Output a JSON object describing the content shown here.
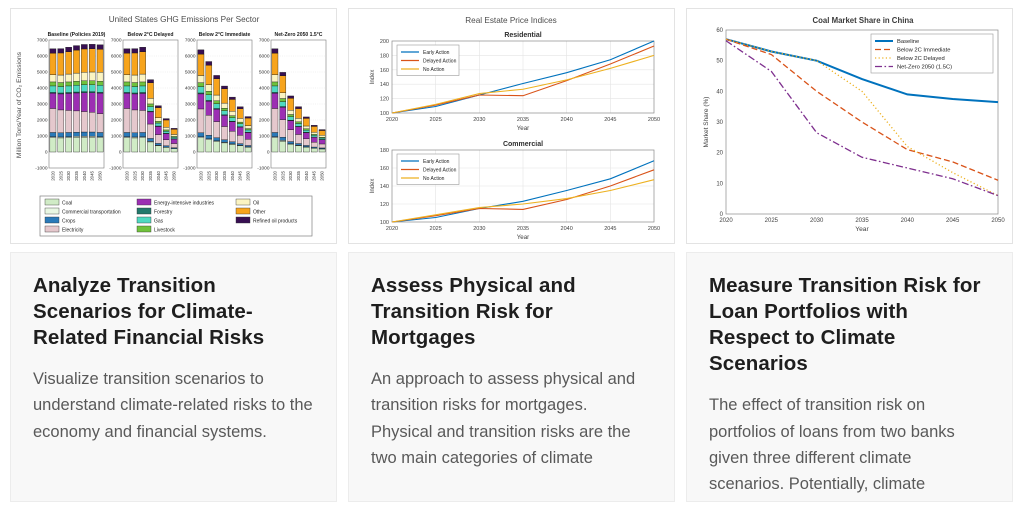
{
  "cards": [
    {
      "title": "Analyze Transition Scenarios for Climate-Related Financial Risks",
      "description": "Visualize transition scenarios to understand climate-related risks to the economy and financial systems."
    },
    {
      "title": "Assess Physical and Transition Risk for Mortgages",
      "description": "An approach to assess physical and transition risks for mortgages. Physical and transition risks are the two main categories of climate"
    },
    {
      "title": "Measure Transition Risk for Loan Portfolios with Respect to Climate Scenarios",
      "description": "The effect of transition risk on portfolios of loans from two banks given three different climate scenarios. Potentially, climate"
    }
  ],
  "chart_data": [
    {
      "type": "bar",
      "stacked": true,
      "title": "United States GHG Emissions Per Sector",
      "ylabel": "Million Tons/Year of CO₂ Emissions",
      "ylim": [
        -1000,
        7000
      ],
      "ytick_step": 1000,
      "categories": [
        "2020",
        "2025",
        "2030",
        "2035",
        "2040",
        "2045",
        "2050"
      ],
      "grid": true,
      "legend_position": "bottom",
      "sectors": [
        {
          "name": "Coal",
          "color": "#d0ebc6"
        },
        {
          "name": "Commercial transportation",
          "color": "#e9f7e3"
        },
        {
          "name": "Crops",
          "color": "#2a7ab9"
        },
        {
          "name": "Electricity",
          "color": "#e5c8cd"
        },
        {
          "name": "Energy-intensive industries",
          "color": "#9c2fb3"
        },
        {
          "name": "Forestry",
          "color": "#23796c"
        },
        {
          "name": "Gas",
          "color": "#4fd9c1"
        },
        {
          "name": "Livestock",
          "color": "#70c23c"
        },
        {
          "name": "Oil",
          "color": "#fbf4c2"
        },
        {
          "name": "Other",
          "color": "#f7a41c"
        },
        {
          "name": "Refined oil products",
          "color": "#380f52"
        }
      ],
      "subplots": [
        {
          "title": "Baseline (Policies 2019)",
          "values": [
            [
              900,
              880,
              900,
              920,
              930,
              930,
              900
            ],
            [
              60,
              60,
              60,
              60,
              60,
              60,
              60
            ],
            [
              260,
              260,
              260,
              260,
              260,
              260,
              260
            ],
            [
              1500,
              1430,
              1380,
              1330,
              1280,
              1230,
              1180
            ],
            [
              950,
              1000,
              1060,
              1120,
              1180,
              1230,
              1280
            ],
            [
              60,
              60,
              60,
              60,
              60,
              60,
              60
            ],
            [
              400,
              400,
              410,
              420,
              430,
              430,
              430
            ],
            [
              250,
              250,
              250,
              250,
              250,
              250,
              250
            ],
            [
              450,
              470,
              490,
              510,
              530,
              550,
              560
            ],
            [
              1350,
              1380,
              1400,
              1440,
              1460,
              1450,
              1440
            ],
            [
              270,
              270,
              280,
              280,
              280,
              280,
              280
            ]
          ]
        },
        {
          "title": "Below 2°C Delayed",
          "values": [
            [
              900,
              880,
              900,
              630,
              400,
              290,
              200
            ],
            [
              60,
              60,
              60,
              41,
              26,
              19,
              13
            ],
            [
              260,
              260,
              260,
              177,
              112,
              81,
              57
            ],
            [
              1500,
              1430,
              1380,
              900,
              550,
              380,
              260
            ],
            [
              950,
              1000,
              1060,
              760,
              510,
              380,
              280
            ],
            [
              60,
              60,
              60,
              41,
              26,
              19,
              13
            ],
            [
              400,
              400,
              410,
              286,
              185,
              133,
              95
            ],
            [
              250,
              250,
              250,
              170,
              108,
              78,
              55
            ],
            [
              450,
              470,
              490,
              347,
              228,
              171,
              123
            ],
            [
              1350,
              1380,
              1400,
              980,
              630,
              450,
              320
            ],
            [
              270,
              270,
              280,
              190,
              120,
              87,
              62
            ]
          ]
        },
        {
          "title": "Below 2°C Immediate",
          "values": [
            [
              890,
              770,
              660,
              570,
              475,
              390,
              300
            ],
            [
              59,
              53,
              44,
              37,
              31,
              25,
              20
            ],
            [
              257,
              228,
              190,
              161,
              133,
              109,
              86
            ],
            [
              1485,
              1251,
              1007,
              825,
              653,
              517,
              389
            ],
            [
              941,
              875,
              774,
              694,
              602,
              517,
              422
            ],
            [
              59,
              53,
              44,
              37,
              31,
              25,
              20
            ],
            [
              396,
              350,
              299,
              260,
              219,
              181,
              142
            ],
            [
              248,
              219,
              183,
              155,
              128,
              105,
              83
            ],
            [
              446,
              411,
              358,
              316,
              270,
              231,
              185
            ],
            [
              1337,
              1208,
              1022,
              893,
              745,
              609,
              475
            ],
            [
              267,
              236,
              204,
              174,
              143,
              118,
              92
            ]
          ]
        },
        {
          "title": "Net-Zero 2050 1.5°C",
          "values": [
            [
              900,
              678,
              482,
              392,
              303,
              231,
              188
            ],
            [
              60,
              46,
              32,
              26,
              20,
              15,
              13
            ],
            [
              260,
              200,
              139,
              111,
              85,
              64,
              54
            ],
            [
              1500,
              1101,
              738,
              567,
              417,
              305,
              247
            ],
            [
              950,
              770,
              567,
              477,
              385,
              305,
              268
            ],
            [
              60,
              46,
              32,
              26,
              20,
              15,
              13
            ],
            [
              400,
              308,
              219,
              179,
              140,
              107,
              90
            ],
            [
              250,
              193,
              134,
              107,
              82,
              62,
              52
            ],
            [
              450,
              362,
              262,
              217,
              173,
              136,
              117
            ],
            [
              1350,
              1063,
              749,
              613,
              476,
              360,
              301
            ],
            [
              270,
              208,
              150,
              119,
              91,
              69,
              59
            ]
          ]
        }
      ]
    },
    {
      "type": "line",
      "suptitle": "Real Estate Price Indices",
      "xlabel": "Year",
      "x": [
        2020,
        2025,
        2030,
        2035,
        2040,
        2045,
        2050
      ],
      "grid": true,
      "legend_position": "top-left",
      "subplots": [
        {
          "title": "Residential",
          "ylabel": "Index",
          "ylim": [
            100,
            200
          ],
          "ytick_step": 20,
          "series": [
            {
              "name": "Early Action",
              "color": "#0072BD",
              "values": [
                100,
                109,
                125,
                141,
                156,
                174,
                200
              ]
            },
            {
              "name": "Delayed Action",
              "color": "#D95319",
              "values": [
                100,
                111,
                125,
                124,
                145,
                168,
                193
              ]
            },
            {
              "name": "No Action",
              "color": "#EDB120",
              "values": [
                100,
                112,
                127,
                133,
                146,
                162,
                180
              ]
            }
          ]
        },
        {
          "title": "Commercial",
          "ylabel": "Index",
          "ylim": [
            100,
            180
          ],
          "ytick_step": 20,
          "series": [
            {
              "name": "Early Action",
              "color": "#0072BD",
              "values": [
                100,
                105,
                115,
                123,
                135,
                148,
                168
              ]
            },
            {
              "name": "Delayed Action",
              "color": "#D95319",
              "values": [
                100,
                107,
                115,
                114,
                125,
                140,
                158
              ]
            },
            {
              "name": "No Action",
              "color": "#EDB120",
              "values": [
                100,
                108,
                116,
                120,
                126,
                135,
                147
              ]
            }
          ]
        }
      ]
    },
    {
      "type": "line",
      "title": "Coal Market Share in China",
      "xlabel": "Year",
      "ylabel": "Market Share (%)",
      "ylim": [
        0,
        60
      ],
      "ytick_step": 10,
      "x": [
        2020,
        2025,
        2030,
        2035,
        2040,
        2045,
        2050
      ],
      "grid": false,
      "legend_position": "top-right",
      "series": [
        {
          "name": "Baseline",
          "color": "#0072BD",
          "style": "solid",
          "width": 2,
          "values": [
            57,
            53,
            50,
            44,
            39,
            37.5,
            36.5
          ]
        },
        {
          "name": "Below 2C Immediate",
          "color": "#D95319",
          "style": "dashed",
          "width": 1.3,
          "values": [
            57,
            52,
            40,
            30,
            21,
            17,
            11
          ]
        },
        {
          "name": "Below 2C Delayed",
          "color": "#EDB120",
          "style": "dotted",
          "width": 1.3,
          "values": [
            57,
            53,
            50,
            40,
            22,
            13.5,
            6
          ]
        },
        {
          "name": "Net-Zero 2050 (1.5C)",
          "color": "#7E2F8E",
          "style": "dashdot",
          "width": 1.3,
          "values": [
            56.5,
            46.5,
            26.5,
            18.5,
            15,
            11.5,
            6
          ]
        }
      ]
    }
  ]
}
